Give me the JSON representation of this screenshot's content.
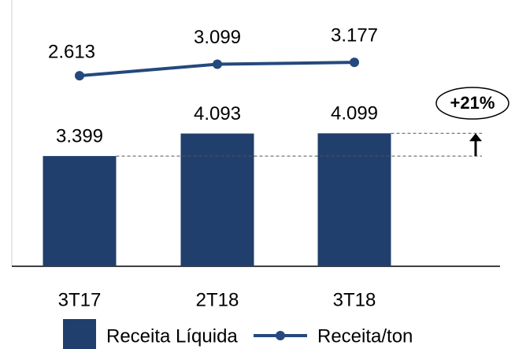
{
  "chart_data": {
    "type": "bar",
    "categories": [
      "3T17",
      "2T18",
      "3T18"
    ],
    "series": [
      {
        "name": "Receita Líquida",
        "type": "bar",
        "color": "#213f6c",
        "values": [
          3399,
          4093,
          4099
        ],
        "value_labels": [
          "3.399",
          "4.093",
          "4.099"
        ]
      },
      {
        "name": "Receita/ton",
        "type": "line",
        "axis": "y2",
        "color": "#24497c",
        "values": [
          2613,
          3099,
          3177
        ],
        "value_labels": [
          "2.613",
          "3.099",
          "3.177"
        ]
      }
    ],
    "ylim": [
      0,
      8210
    ],
    "y2lim": [
      -5400,
      5800
    ],
    "annotation": "+21%",
    "legend": "bottom"
  }
}
